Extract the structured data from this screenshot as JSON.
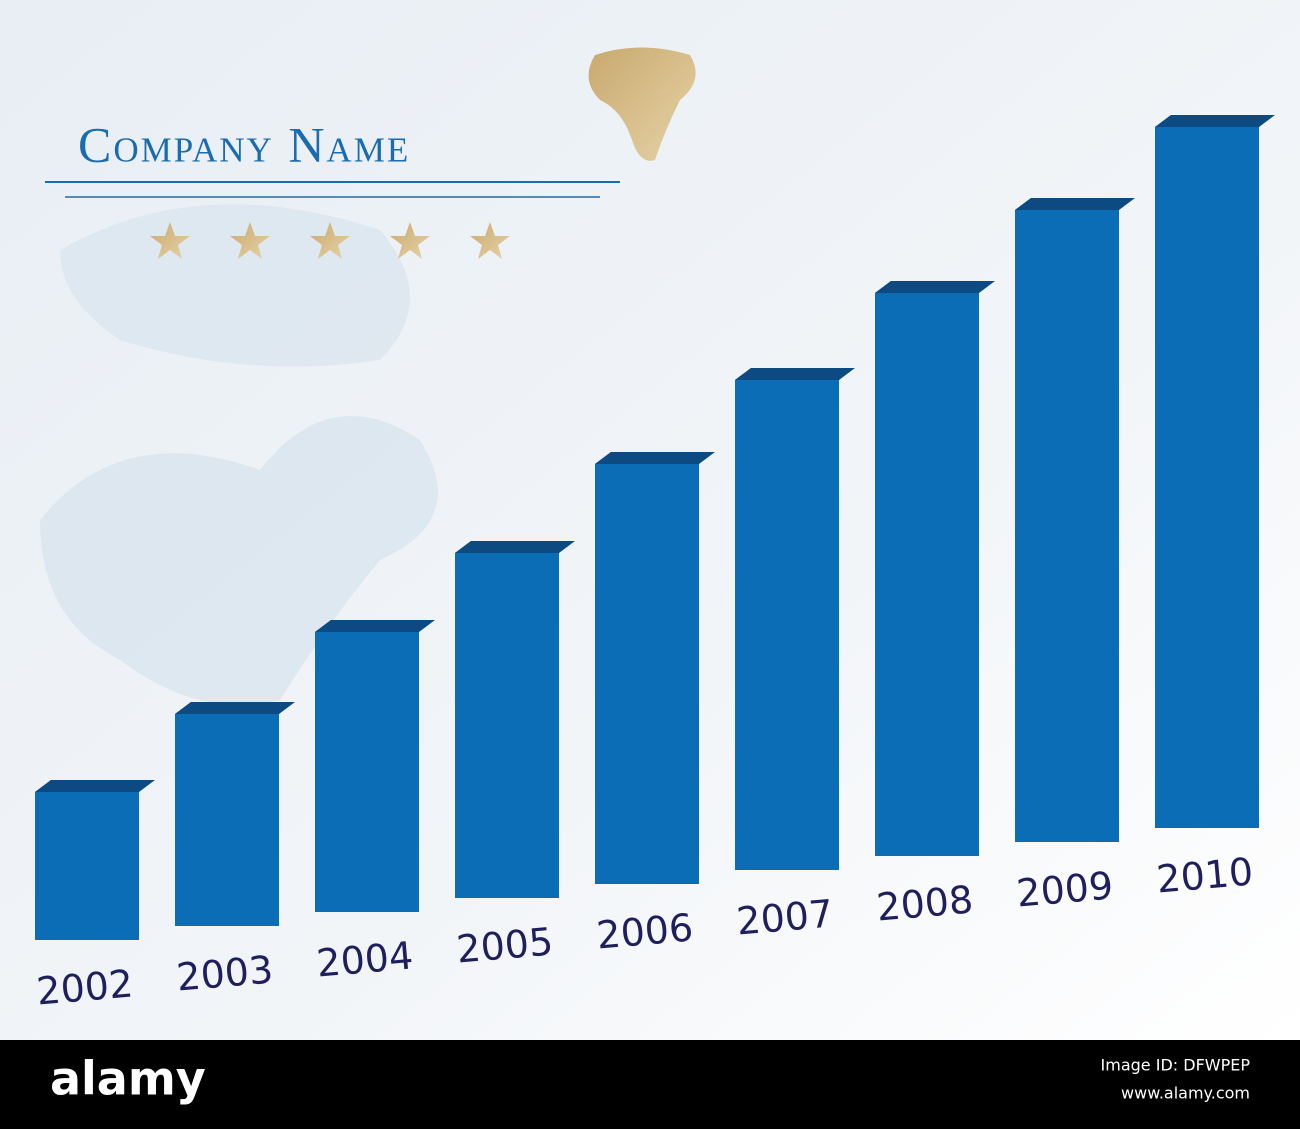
{
  "chart_data": {
    "type": "bar",
    "title": "Company Name",
    "categories": [
      "2002",
      "2003",
      "2004",
      "2005",
      "2006",
      "2007",
      "2008",
      "2009",
      "2010"
    ],
    "values": [
      148,
      212,
      280,
      345,
      420,
      490,
      563,
      632,
      701
    ],
    "color": "#0b6db5"
  },
  "footer": {
    "brand": "alamy",
    "image_id": "Image ID: DFWPEP",
    "url": "www.alamy.com"
  }
}
